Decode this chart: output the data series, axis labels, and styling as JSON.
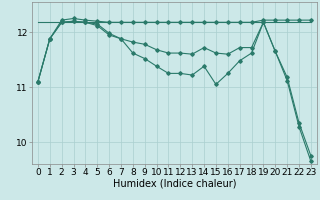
{
  "bg_color": "#cce8e8",
  "grid_color": "#aacfcf",
  "line_color": "#2a7a6a",
  "xlabel": "Humidex (Indice chaleur)",
  "xlabel_fontsize": 7,
  "tick_fontsize": 6.5,
  "ylim": [
    9.6,
    12.55
  ],
  "xlim": [
    -0.5,
    23.5
  ],
  "yticks": [
    10,
    11,
    12
  ],
  "xticks": [
    0,
    1,
    2,
    3,
    4,
    5,
    6,
    7,
    8,
    9,
    10,
    11,
    12,
    13,
    14,
    15,
    16,
    17,
    18,
    19,
    20,
    21,
    22,
    23
  ],
  "line_flat": [
    12.18,
    12.18,
    12.18,
    12.18,
    12.18,
    12.18,
    12.18,
    12.18,
    12.18,
    12.18,
    12.18,
    12.18,
    12.18,
    12.18,
    12.18,
    12.18,
    12.18,
    12.18,
    12.18,
    12.18,
    12.18,
    12.18,
    12.18,
    12.18
  ],
  "line_top": [
    11.1,
    11.88,
    12.22,
    12.25,
    12.22,
    12.2,
    12.18,
    12.18,
    12.18,
    12.18,
    12.18,
    12.18,
    12.18,
    12.18,
    12.18,
    12.18,
    12.18,
    12.18,
    12.18,
    12.22,
    12.22,
    12.22,
    12.22,
    12.22
  ],
  "line_mid": [
    11.1,
    11.88,
    12.18,
    12.2,
    12.18,
    12.12,
    11.95,
    11.88,
    11.82,
    11.78,
    11.68,
    11.62,
    11.62,
    11.6,
    11.72,
    11.62,
    11.6,
    11.72,
    11.72,
    12.18,
    11.65,
    11.18,
    10.35,
    9.75
  ],
  "line_low": [
    11.1,
    11.88,
    12.18,
    12.2,
    12.18,
    12.15,
    11.98,
    11.88,
    11.62,
    11.52,
    11.38,
    11.25,
    11.25,
    11.22,
    11.38,
    11.05,
    11.25,
    11.48,
    11.62,
    12.18,
    11.65,
    11.12,
    10.28,
    9.65
  ]
}
